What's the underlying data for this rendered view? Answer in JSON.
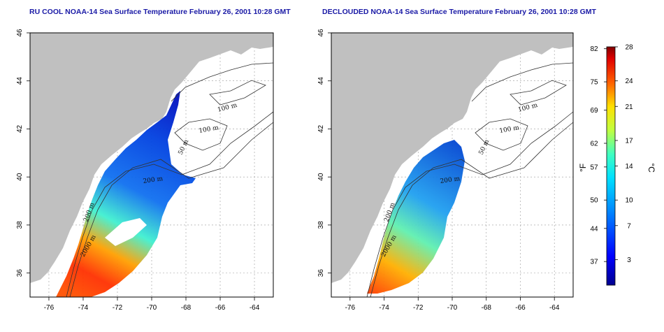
{
  "panels": [
    {
      "title": "RU COOL NOAA-14 Sea Surface Temperature February 26, 2001 10:28 GMT",
      "contour_labels": [
        "100 m",
        "100 m",
        "50 m",
        "200 m",
        "200 m",
        "2000 m"
      ]
    },
    {
      "title": "DECLOUDED NOAA-14 Sea Surface Temperature February 26, 2001 10:28 GMT",
      "contour_labels": [
        "100 m",
        "100 m",
        "50 m",
        "200 m",
        "200 m",
        "2000 m"
      ]
    }
  ],
  "axes": {
    "x_ticks": [
      "-76",
      "-74",
      "-72",
      "-70",
      "-68",
      "-66",
      "-64"
    ],
    "y_ticks": [
      "36",
      "38",
      "40",
      "42",
      "44",
      "46"
    ],
    "x_range": [
      -77.1,
      -62.9
    ],
    "y_range": [
      35.0,
      46.0
    ]
  },
  "colorbar": {
    "fahrenheit_ticks": [
      "82",
      "75",
      "69",
      "62",
      "57",
      "50",
      "44",
      "37"
    ],
    "celsius_ticks": [
      "28",
      "24",
      "21",
      "17",
      "14",
      "10",
      "7",
      "3"
    ],
    "unit_f": "°F",
    "unit_c": "°C",
    "range_c": [
      0,
      28
    ]
  },
  "colors": {
    "land": "#c0c0c0",
    "ocean_nodata": "#ffffff",
    "title": "#1a1aa6"
  }
}
